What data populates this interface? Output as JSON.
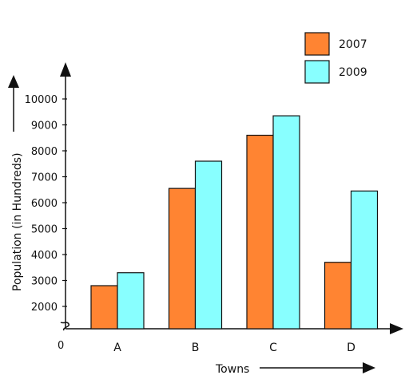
{
  "chart_data": {
    "type": "bar",
    "title": "",
    "xlabel": "Towns",
    "ylabel": "Population (in Hundreds)",
    "origin_label": "0",
    "categories": [
      "A",
      "B",
      "C",
      "D"
    ],
    "series": [
      {
        "name": "2007",
        "color": "#FF8432",
        "values": [
          2800,
          6550,
          8600,
          3700
        ]
      },
      {
        "name": "2009",
        "color": "#88FFFF",
        "values": [
          3300,
          7600,
          9350,
          6450
        ]
      }
    ],
    "yticks": [
      2000,
      3000,
      4000,
      5000,
      6000,
      7000,
      8000,
      9000,
      10000
    ],
    "ylim": [
      1000,
      10000
    ],
    "axis_break": true,
    "grid": false,
    "legend_position": "top-right"
  }
}
